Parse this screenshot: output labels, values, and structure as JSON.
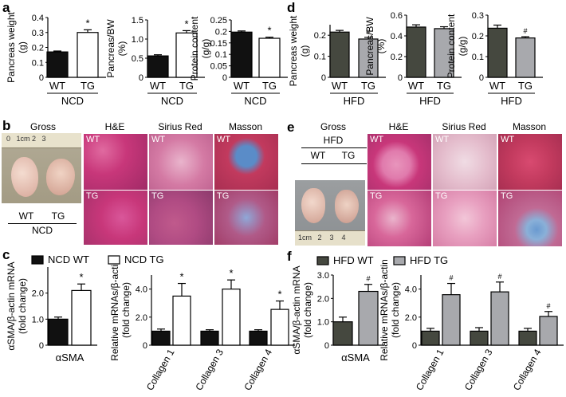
{
  "panel_labels": [
    "a",
    "b",
    "c",
    "d",
    "e",
    "f"
  ],
  "colors": {
    "black": "#111111",
    "white": "#ffffff",
    "hfd_dark": "#45483f",
    "hfd_gray": "#a8a9ad",
    "he_tissue": "#c8377a",
    "sirius_tissue": "#d47aa4",
    "masson_tissue": "#c23a5e",
    "masson_fibrosis": "#5a8cc8"
  },
  "images": {
    "b": {
      "gross_title": "Gross",
      "stain_titles": [
        "H&E",
        "Sirius Red",
        "Masson"
      ],
      "row_labels": [
        "WT",
        "TG"
      ],
      "group_labels": [
        "WT",
        "TG"
      ],
      "diet": "NCD",
      "ruler_text": "0   1cm 2   3"
    },
    "e": {
      "gross_title": "Gross",
      "gross_subtitle": "HFD",
      "stain_titles": [
        "H&E",
        "Sirius Red",
        "Masson"
      ],
      "row_labels": [
        "WT",
        "TG"
      ],
      "group_labels": [
        "WT",
        "TG"
      ],
      "ruler_text": "1cm   2    3    4"
    }
  },
  "chart_data": [
    {
      "id": "a1",
      "type": "bar",
      "panel": "a",
      "categories": [
        "WT",
        "TG"
      ],
      "group_label": "NCD",
      "ylabel": "Pancreas weight\n(g)",
      "ylim": [
        0,
        0.4
      ],
      "ticks": [
        0,
        0.1,
        0.2,
        0.3,
        0.4
      ],
      "tick_labels": [
        "0",
        "0.1",
        "0.2",
        "0.3",
        "0.4"
      ],
      "values": [
        0.17,
        0.3
      ],
      "errors": [
        0.006,
        0.018
      ],
      "colors": [
        "#111111",
        "#ffffff"
      ],
      "annotations": [
        "",
        "*"
      ]
    },
    {
      "id": "a2",
      "type": "bar",
      "panel": "a",
      "categories": [
        "WT",
        "TG"
      ],
      "group_label": "NCD",
      "ylabel": "Pancreas/BW\n(%)",
      "ylim": [
        0,
        1.5
      ],
      "ticks": [
        0,
        0.5,
        1.0,
        1.5
      ],
      "tick_labels": [
        "0",
        "0.5",
        "1.0",
        "1.5"
      ],
      "values": [
        0.56,
        1.16
      ],
      "errors": [
        0.03,
        0.06
      ],
      "colors": [
        "#111111",
        "#ffffff"
      ],
      "annotations": [
        "",
        "*"
      ]
    },
    {
      "id": "a3",
      "type": "bar",
      "panel": "a",
      "categories": [
        "WT",
        "TG"
      ],
      "group_label": "NCD",
      "ylabel": "Protein content\n(g/g)",
      "ylim": [
        0,
        0.25
      ],
      "ticks": [
        0,
        0.05,
        0.1,
        0.15,
        0.2,
        0.25
      ],
      "tick_labels": [
        "0",
        "0.05",
        "0.1",
        "0.15",
        "0.2",
        "0.25"
      ],
      "values": [
        0.197,
        0.17
      ],
      "errors": [
        0.005,
        0.005
      ],
      "colors": [
        "#111111",
        "#ffffff"
      ],
      "annotations": [
        "",
        "*"
      ]
    },
    {
      "id": "d1",
      "type": "bar",
      "panel": "d",
      "categories": [
        "WT",
        "TG"
      ],
      "group_label": "HFD",
      "ylabel": "Pancreas weight\n(g)",
      "ylim": [
        0,
        0.25
      ],
      "ticks": [
        0,
        0.1,
        0.2
      ],
      "tick_labels": [
        "0",
        "0.1",
        "0.2"
      ],
      "values": [
        0.215,
        0.182
      ],
      "errors": [
        0.008,
        0.008
      ],
      "colors": [
        "#45483f",
        "#a8a9ad"
      ],
      "annotations": [
        "",
        "#"
      ]
    },
    {
      "id": "d2",
      "type": "bar",
      "panel": "d",
      "categories": [
        "WT",
        "TG"
      ],
      "group_label": "HFD",
      "ylabel": "Pancreas/BW\n(%)",
      "ylim": [
        0,
        0.6
      ],
      "ticks": [
        0,
        0.2,
        0.4,
        0.6
      ],
      "tick_labels": [
        "0",
        "0.2",
        "0.4",
        "0.6"
      ],
      "values": [
        0.485,
        0.47
      ],
      "errors": [
        0.022,
        0.018
      ],
      "colors": [
        "#45483f",
        "#a8a9ad"
      ],
      "annotations": [
        "",
        ""
      ]
    },
    {
      "id": "d3",
      "type": "bar",
      "panel": "d",
      "categories": [
        "WT",
        "TG"
      ],
      "group_label": "HFD",
      "ylabel": "Protein content\n(g/g)",
      "ylim": [
        0,
        0.3
      ],
      "ticks": [
        0,
        0.1,
        0.2,
        0.3
      ],
      "tick_labels": [
        "0",
        "0.1",
        "0.2",
        "0.3"
      ],
      "values": [
        0.237,
        0.19
      ],
      "errors": [
        0.015,
        0.006
      ],
      "colors": [
        "#45483f",
        "#a8a9ad"
      ],
      "annotations": [
        "",
        "#"
      ]
    },
    {
      "id": "c1",
      "type": "bar",
      "panel": "c",
      "categories": [
        "αSMA"
      ],
      "ylabel": "αSMA/β-actin mRNA\n(fold change)",
      "ylim": [
        0,
        3.0
      ],
      "ticks": [
        0,
        1.0,
        2.0
      ],
      "tick_labels": [
        "0",
        "1.0",
        "2.0"
      ],
      "series": [
        {
          "name": "NCD WT",
          "values": [
            1.0
          ],
          "errors": [
            0.08
          ],
          "color": "#111111"
        },
        {
          "name": "NCD TG",
          "values": [
            2.1
          ],
          "errors": [
            0.25
          ],
          "color": "#ffffff"
        }
      ],
      "annotations": [
        [
          "",
          "*"
        ]
      ]
    },
    {
      "id": "c2",
      "type": "bar",
      "panel": "c",
      "categories": [
        "Collagen 1",
        "Collagen 3",
        "Collagen 4"
      ],
      "ylabel": "Relative mRNAs/β-actin\n(fold change)",
      "ylim": [
        0,
        5.0
      ],
      "ticks": [
        0,
        2.0,
        4.0
      ],
      "tick_labels": [
        "0",
        "2.0",
        "4.0"
      ],
      "series": [
        {
          "name": "NCD WT",
          "values": [
            1.0,
            1.0,
            1.0
          ],
          "errors": [
            0.15,
            0.1,
            0.1
          ],
          "color": "#111111"
        },
        {
          "name": "NCD TG",
          "values": [
            3.5,
            4.0,
            2.55
          ],
          "errors": [
            0.9,
            0.65,
            0.6
          ],
          "color": "#ffffff"
        }
      ],
      "annotations": [
        [
          "",
          "*"
        ],
        [
          "",
          "*"
        ],
        [
          "",
          "*"
        ]
      ]
    },
    {
      "id": "f1",
      "type": "bar",
      "panel": "f",
      "categories": [
        "αSMA"
      ],
      "ylabel": "αSMA/β-actin mRNA\n(fold change)",
      "ylim": [
        0,
        3.0
      ],
      "ticks": [
        0,
        1.0,
        2.0,
        3.0
      ],
      "tick_labels": [
        "0",
        "1.0",
        "2.0",
        "3.0"
      ],
      "series": [
        {
          "name": "HFD WT",
          "values": [
            1.0
          ],
          "errors": [
            0.2
          ],
          "color": "#45483f"
        },
        {
          "name": "HFD TG",
          "values": [
            2.3
          ],
          "errors": [
            0.3
          ],
          "color": "#a8a9ad"
        }
      ],
      "annotations": [
        [
          "",
          "#"
        ]
      ]
    },
    {
      "id": "f2",
      "type": "bar",
      "panel": "f",
      "categories": [
        "Collagen 1",
        "Collagen 3",
        "Collagen 4"
      ],
      "ylabel": "Relative mRNAs/β-actin\n(fold change)",
      "ylim": [
        0,
        5.0
      ],
      "ticks": [
        0,
        2.0,
        4.0
      ],
      "tick_labels": [
        "0",
        "2.0",
        "4.0"
      ],
      "series": [
        {
          "name": "HFD WT",
          "values": [
            1.0,
            1.0,
            1.0
          ],
          "errors": [
            0.2,
            0.25,
            0.2
          ],
          "color": "#45483f"
        },
        {
          "name": "HFD TG",
          "values": [
            3.6,
            3.8,
            2.05
          ],
          "errors": [
            0.8,
            0.7,
            0.35
          ],
          "color": "#a8a9ad"
        }
      ],
      "annotations": [
        [
          "",
          "#"
        ],
        [
          "",
          "#"
        ],
        [
          "",
          "#"
        ]
      ]
    }
  ]
}
